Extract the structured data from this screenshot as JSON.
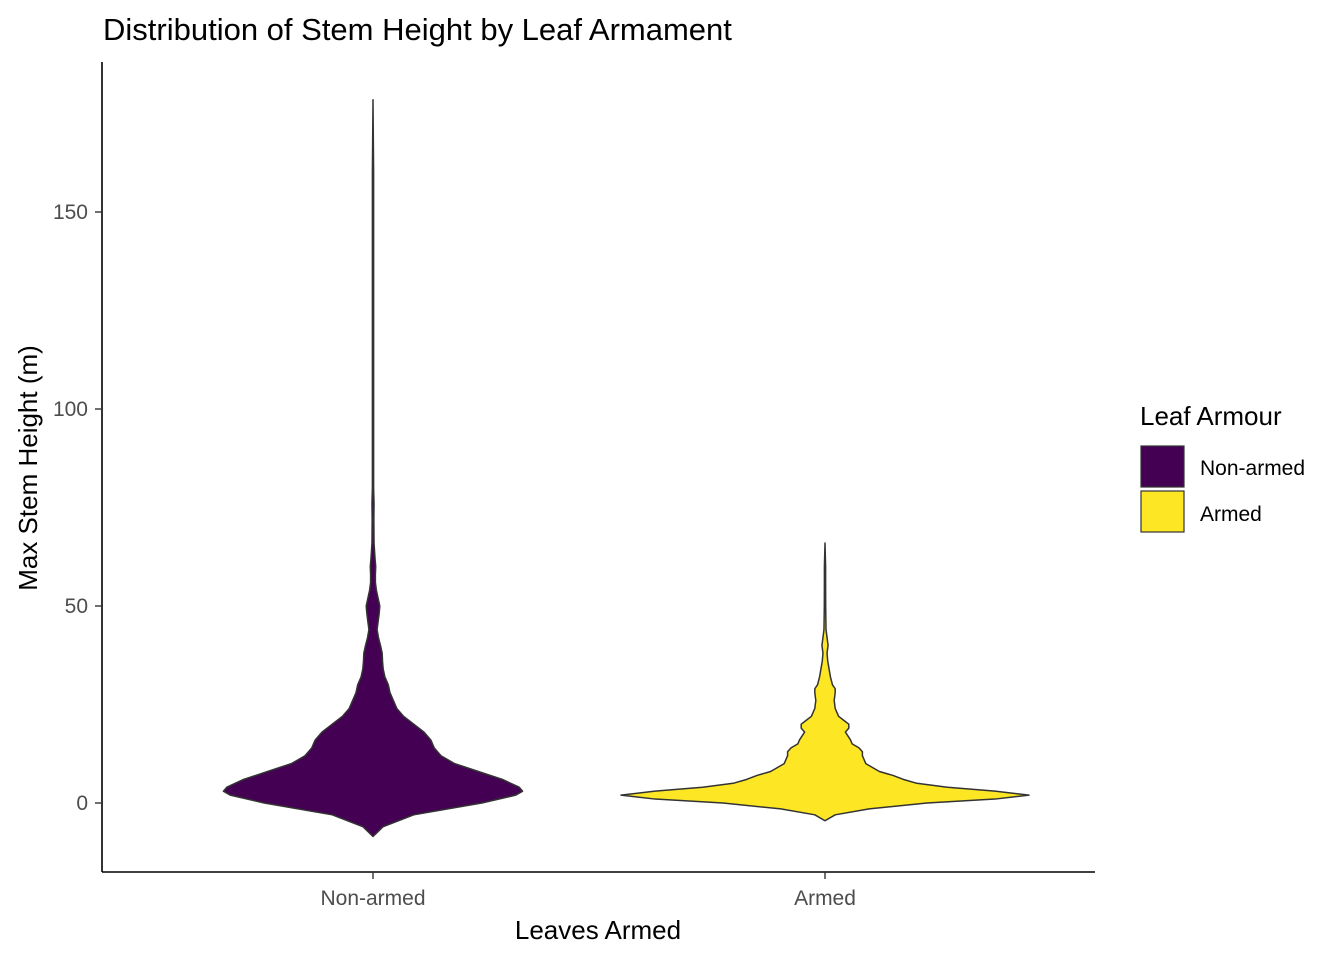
{
  "chart_data": {
    "type": "violin",
    "title": "Distribution of Stem Height by Leaf Armament",
    "xlabel": "Leaves Armed",
    "ylabel": "Max Stem Height (m)",
    "categories": [
      "Non-armed",
      "Armed"
    ],
    "ylim": [
      -17.5,
      187
    ],
    "yticks": [
      0,
      50,
      100,
      150
    ],
    "grid": false,
    "legend": {
      "title": "Leaf Armour",
      "placement": "right",
      "entries": [
        "Non-armed",
        "Armed"
      ]
    },
    "colors": {
      "Non-armed": "#440154",
      "Armed": "#FDE725",
      "outline": "#333333"
    },
    "series": [
      {
        "category": "Non-armed",
        "y_range": [
          -8.5,
          178.5
        ],
        "density_profile": [
          [
            -8.5,
            0.0
          ],
          [
            -6,
            0.03
          ],
          [
            -3,
            0.12
          ],
          [
            0,
            0.32
          ],
          [
            2,
            0.42
          ],
          [
            3,
            0.44
          ],
          [
            4,
            0.43
          ],
          [
            6,
            0.38
          ],
          [
            8,
            0.31
          ],
          [
            10,
            0.24
          ],
          [
            12,
            0.2
          ],
          [
            14,
            0.18
          ],
          [
            16,
            0.17
          ],
          [
            18,
            0.15
          ],
          [
            20,
            0.12
          ],
          [
            22,
            0.09
          ],
          [
            24,
            0.07
          ],
          [
            26,
            0.06
          ],
          [
            28,
            0.05
          ],
          [
            30,
            0.045
          ],
          [
            32,
            0.035
          ],
          [
            34,
            0.03
          ],
          [
            36,
            0.028
          ],
          [
            38,
            0.027
          ],
          [
            40,
            0.022
          ],
          [
            42,
            0.016
          ],
          [
            44,
            0.012
          ],
          [
            46,
            0.015
          ],
          [
            48,
            0.018
          ],
          [
            50,
            0.02
          ],
          [
            52,
            0.015
          ],
          [
            54,
            0.01
          ],
          [
            56,
            0.007
          ],
          [
            58,
            0.007
          ],
          [
            60,
            0.008
          ],
          [
            62,
            0.006
          ],
          [
            66,
            0.003
          ],
          [
            72,
            0.0025
          ],
          [
            76,
            0.003
          ],
          [
            80,
            0.0015
          ],
          [
            90,
            0.0008
          ],
          [
            100,
            0.0015
          ],
          [
            110,
            0.0006
          ],
          [
            130,
            0.0005
          ],
          [
            150,
            0.001
          ],
          [
            160,
            0.0005
          ],
          [
            178.5,
            0.0
          ]
        ]
      },
      {
        "category": "Armed",
        "y_range": [
          -4.5,
          66
        ],
        "density_profile": [
          [
            -4.5,
            0.0
          ],
          [
            -3,
            0.03
          ],
          [
            -1.5,
            0.13
          ],
          [
            0,
            0.3
          ],
          [
            1,
            0.5
          ],
          [
            2,
            0.6
          ],
          [
            3,
            0.5
          ],
          [
            4,
            0.36
          ],
          [
            5,
            0.27
          ],
          [
            6,
            0.23
          ],
          [
            7,
            0.2
          ],
          [
            8,
            0.16
          ],
          [
            10,
            0.12
          ],
          [
            12,
            0.11
          ],
          [
            13,
            0.11
          ],
          [
            14,
            0.1
          ],
          [
            15,
            0.08
          ],
          [
            16,
            0.075
          ],
          [
            18,
            0.06
          ],
          [
            19,
            0.07
          ],
          [
            20,
            0.07
          ],
          [
            21,
            0.055
          ],
          [
            22,
            0.04
          ],
          [
            24,
            0.03
          ],
          [
            26,
            0.027
          ],
          [
            28,
            0.03
          ],
          [
            29,
            0.03
          ],
          [
            30,
            0.022
          ],
          [
            32,
            0.016
          ],
          [
            34,
            0.012
          ],
          [
            36,
            0.008
          ],
          [
            38,
            0.006
          ],
          [
            40,
            0.009
          ],
          [
            42,
            0.006
          ],
          [
            44,
            0.003
          ],
          [
            50,
            0.002
          ],
          [
            56,
            0.0015
          ],
          [
            60,
            0.0015
          ],
          [
            66,
            0.0
          ]
        ]
      }
    ]
  }
}
